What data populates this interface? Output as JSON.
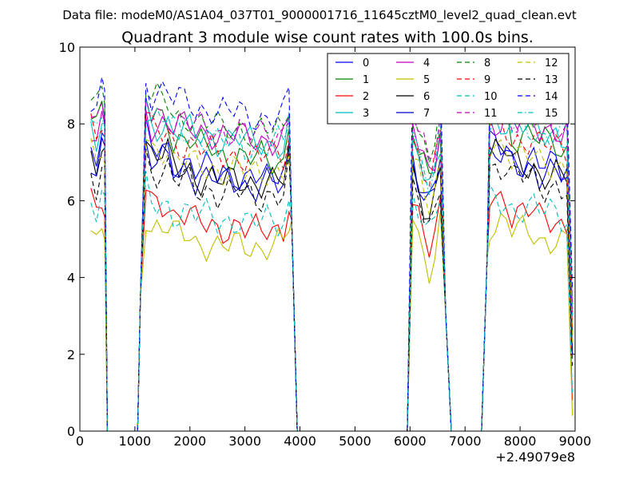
{
  "figure": {
    "suptitle": "Data file: modeM0/AS1A04_037T01_9000001716_11645cztM0_level2_quad_clean.evt",
    "x_offset_label": "+2.49079e8"
  },
  "chart_data": {
    "type": "line",
    "title": "Quadrant 3 module wise count rates with 100.0s bins.",
    "xlabel": "",
    "ylabel": "",
    "xlim": [
      0,
      9000
    ],
    "ylim": [
      0,
      10
    ],
    "x_ticks": [
      0,
      1000,
      2000,
      3000,
      4000,
      5000,
      6000,
      7000,
      8000,
      9000
    ],
    "y_ticks": [
      0,
      2,
      4,
      6,
      8,
      10
    ],
    "x_tick_labels": [
      "0",
      "1000",
      "2000",
      "3000",
      "4000",
      "5000",
      "6000",
      "7000",
      "8000",
      "9000"
    ],
    "y_tick_labels": [
      "0",
      "2",
      "4",
      "6",
      "8",
      "10"
    ],
    "grid": false,
    "legend_location": "top-right",
    "legend_columns": 4,
    "series": [
      {
        "name": "0",
        "color": "#0000ff",
        "dash": "solid",
        "plateau": [
          7.3,
          7.0,
          6.8,
          6.7,
          6.6,
          6.5
        ],
        "peak": 7.0
      },
      {
        "name": "1",
        "color": "#008000",
        "dash": "solid",
        "plateau": [
          8.2,
          7.6,
          7.4,
          7.2,
          7.1,
          7.0
        ],
        "peak": 7.7
      },
      {
        "name": "2",
        "color": "#ff0000",
        "dash": "solid",
        "plateau": [
          6.0,
          5.6,
          5.4,
          5.3,
          5.2,
          5.3
        ],
        "peak": 5.9
      },
      {
        "name": "3",
        "color": "#00bfbf",
        "dash": "solid",
        "plateau": [
          8.0,
          7.8,
          7.7,
          7.6,
          7.5,
          7.5
        ],
        "peak": 7.6
      },
      {
        "name": "4",
        "color": "#bf00bf",
        "dash": "solid",
        "plateau": [
          8.0,
          7.9,
          7.8,
          7.7,
          7.6,
          7.6
        ],
        "peak": 8.0
      },
      {
        "name": "5",
        "color": "#bfbf00",
        "dash": "solid",
        "plateau": [
          5.3,
          5.1,
          4.9,
          4.8,
          4.8,
          4.9
        ],
        "peak": 5.5
      },
      {
        "name": "6",
        "color": "#000000",
        "dash": "solid",
        "plateau": [
          7.2,
          6.8,
          6.6,
          6.5,
          6.5,
          6.5
        ],
        "peak": 6.9
      },
      {
        "name": "7",
        "color": "#0000cc",
        "dash": "solid",
        "plateau": [
          7.0,
          6.8,
          6.6,
          6.5,
          6.4,
          6.5
        ],
        "peak": 7.2
      },
      {
        "name": "8",
        "color": "#008000",
        "dash": "dashed",
        "plateau": [
          8.6,
          8.2,
          8.0,
          7.9,
          7.8,
          7.8
        ],
        "peak": 8.3
      },
      {
        "name": "9",
        "color": "#ff0000",
        "dash": "dashed",
        "plateau": [
          7.8,
          7.5,
          7.3,
          7.2,
          7.1,
          7.2
        ],
        "peak": 7.6
      },
      {
        "name": "10",
        "color": "#00bfbf",
        "dash": "dashed",
        "plateau": [
          5.9,
          5.7,
          5.6,
          5.5,
          5.4,
          5.5
        ],
        "peak": 6.2
      },
      {
        "name": "11",
        "color": "#bf00bf",
        "dash": "dashed",
        "plateau": [
          8.3,
          8.0,
          7.9,
          7.8,
          7.7,
          7.8
        ],
        "peak": 8.2
      },
      {
        "name": "12",
        "color": "#bfbf00",
        "dash": "dashed",
        "plateau": [
          7.4,
          7.0,
          6.9,
          6.8,
          6.7,
          6.8
        ],
        "peak": 7.1
      },
      {
        "name": "13",
        "color": "#000000",
        "dash": "dashed",
        "plateau": [
          6.8,
          6.5,
          6.3,
          6.2,
          6.1,
          6.2
        ],
        "peak": 6.6
      },
      {
        "name": "14",
        "color": "#0000ff",
        "dash": "dashed",
        "plateau": [
          8.8,
          8.6,
          8.4,
          8.3,
          8.2,
          8.2
        ],
        "peak": 9.6
      },
      {
        "name": "15",
        "color": "#00bfbf",
        "dash": "dashdot",
        "plateau": [
          8.1,
          7.8,
          7.6,
          7.5,
          7.4,
          7.5
        ],
        "peak": 7.8
      }
    ],
    "segments": [
      {
        "start": 200,
        "end": 450,
        "step": 50
      },
      {
        "start": 1200,
        "end": 3800,
        "step": 100
      },
      {
        "start": 6050,
        "end": 6600,
        "step": 50
      },
      {
        "start": 7450,
        "end": 8900,
        "step": 100
      }
    ],
    "zero_ranges": [
      [
        500,
        1050
      ],
      [
        3950,
        5950
      ],
      [
        6750,
        7300
      ]
    ]
  }
}
